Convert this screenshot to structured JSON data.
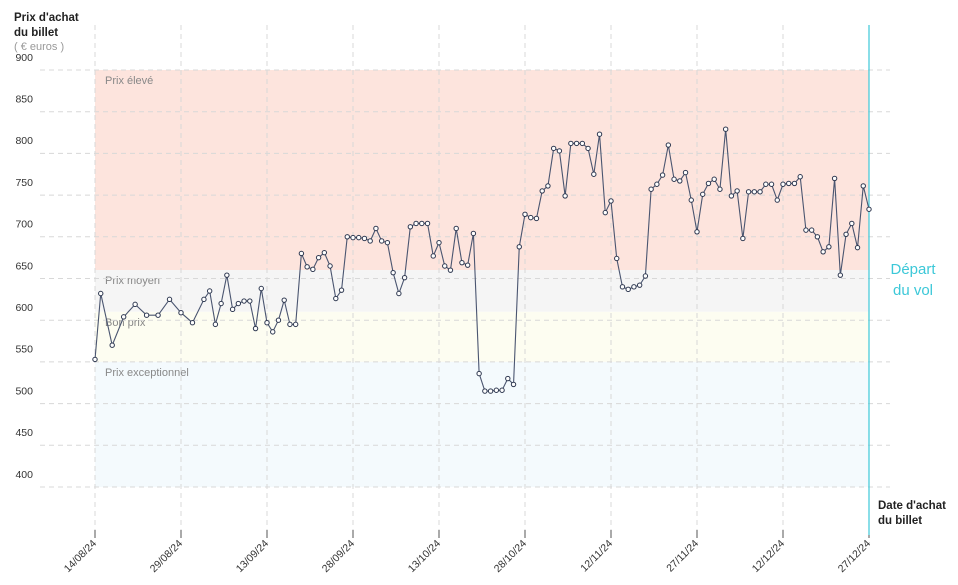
{
  "chart_data": {
    "type": "line",
    "y_label": [
      "Prix d'achat",
      "du billet"
    ],
    "y_unit": "( € euros )",
    "x_label": [
      "Date d'achat",
      "du billet"
    ],
    "departure": {
      "date": "2024-12-27",
      "label": [
        "Départ",
        "du vol"
      ],
      "color": "#3cc8d8"
    },
    "bands": [
      {
        "label": "Prix élevé",
        "from": 660,
        "to": 900,
        "color": "#fde4dd"
      },
      {
        "label": "Prix moyen",
        "from": 610,
        "to": 660,
        "color": "#f5f5f5"
      },
      {
        "label": "Bon prix",
        "from": 550,
        "to": 610,
        "color": "#fdfdf1"
      },
      {
        "label": "Prix exceptionnel",
        "from": 400,
        "to": 550,
        "color": "#f4fafd"
      }
    ],
    "xlim": [
      "2024-08-14",
      "2024-12-27"
    ],
    "xticks": [
      {
        "value": "2024-08-14",
        "label": "14/08/24"
      },
      {
        "value": "2024-08-29",
        "label": "29/08/24"
      },
      {
        "value": "2024-09-13",
        "label": "13/09/24"
      },
      {
        "value": "2024-09-28",
        "label": "28/09/24"
      },
      {
        "value": "2024-10-13",
        "label": "13/10/24"
      },
      {
        "value": "2024-10-28",
        "label": "28/10/24"
      },
      {
        "value": "2024-11-12",
        "label": "12/11/24"
      },
      {
        "value": "2024-11-27",
        "label": "27/11/24"
      },
      {
        "value": "2024-12-12",
        "label": "12/12/24"
      },
      {
        "value": "2024-12-27",
        "label": "27/12/24"
      }
    ],
    "ylim": [
      400,
      900
    ],
    "yticks": [
      400,
      450,
      500,
      550,
      600,
      650,
      700,
      750,
      800,
      850,
      900
    ],
    "grid": true,
    "series": [
      {
        "color": "#4a5570",
        "x": [
          "2024-08-14",
          "2024-08-15",
          "2024-08-17",
          "2024-08-19",
          "2024-08-21",
          "2024-08-23",
          "2024-08-25",
          "2024-08-27",
          "2024-08-29",
          "2024-08-31",
          "2024-09-02",
          "2024-09-03",
          "2024-09-04",
          "2024-09-05",
          "2024-09-06",
          "2024-09-07",
          "2024-09-08",
          "2024-09-09",
          "2024-09-10",
          "2024-09-11",
          "2024-09-12",
          "2024-09-13",
          "2024-09-14",
          "2024-09-15",
          "2024-09-16",
          "2024-09-17",
          "2024-09-18",
          "2024-09-19",
          "2024-09-20",
          "2024-09-21",
          "2024-09-22",
          "2024-09-23",
          "2024-09-24",
          "2024-09-25",
          "2024-09-26",
          "2024-09-27",
          "2024-09-28",
          "2024-09-29",
          "2024-09-30",
          "2024-10-01",
          "2024-10-02",
          "2024-10-03",
          "2024-10-04",
          "2024-10-05",
          "2024-10-06",
          "2024-10-07",
          "2024-10-08",
          "2024-10-09",
          "2024-10-10",
          "2024-10-11",
          "2024-10-12",
          "2024-10-13",
          "2024-10-14",
          "2024-10-15",
          "2024-10-16",
          "2024-10-17",
          "2024-10-18",
          "2024-10-19",
          "2024-10-20",
          "2024-10-21",
          "2024-10-22",
          "2024-10-23",
          "2024-10-24",
          "2024-10-25",
          "2024-10-26",
          "2024-10-27",
          "2024-10-28",
          "2024-10-29",
          "2024-10-30",
          "2024-10-31",
          "2024-11-01",
          "2024-11-02",
          "2024-11-03",
          "2024-11-04",
          "2024-11-05",
          "2024-11-06",
          "2024-11-07",
          "2024-11-08",
          "2024-11-09",
          "2024-11-10",
          "2024-11-11",
          "2024-11-12",
          "2024-11-13",
          "2024-11-14",
          "2024-11-15",
          "2024-11-16",
          "2024-11-17",
          "2024-11-18",
          "2024-11-19",
          "2024-11-20",
          "2024-11-21",
          "2024-11-22",
          "2024-11-23",
          "2024-11-24",
          "2024-11-25",
          "2024-11-26",
          "2024-11-27",
          "2024-11-28",
          "2024-11-29",
          "2024-11-30",
          "2024-12-01",
          "2024-12-02",
          "2024-12-03",
          "2024-12-04",
          "2024-12-05",
          "2024-12-06",
          "2024-12-07",
          "2024-12-08",
          "2024-12-09",
          "2024-12-10",
          "2024-12-11",
          "2024-12-12",
          "2024-12-13",
          "2024-12-14",
          "2024-12-15",
          "2024-12-16",
          "2024-12-17",
          "2024-12-18",
          "2024-12-19",
          "2024-12-20",
          "2024-12-21",
          "2024-12-22",
          "2024-12-23",
          "2024-12-24",
          "2024-12-25",
          "2024-12-26",
          "2024-12-27"
        ],
        "values": [
          553,
          632,
          570,
          604,
          619,
          606,
          606,
          625,
          609,
          597,
          625,
          635,
          595,
          620,
          654,
          613,
          620,
          623,
          623,
          590,
          638,
          597,
          586,
          600,
          624,
          595,
          595,
          680,
          664,
          661,
          675,
          681,
          665,
          626,
          636,
          700,
          699,
          699,
          698,
          695,
          710,
          695,
          693,
          657,
          632,
          651,
          712,
          716,
          716,
          716,
          677,
          693,
          665,
          660,
          710,
          669,
          666,
          704,
          536,
          515,
          515,
          516,
          516,
          530,
          523,
          688,
          727,
          723,
          722,
          755,
          761,
          806,
          803,
          749,
          812,
          812,
          812,
          806,
          775,
          823,
          729,
          743,
          674,
          640,
          637,
          640,
          642,
          653,
          757,
          763,
          774,
          810,
          769,
          767,
          777,
          744,
          706,
          751,
          764,
          769,
          757,
          829,
          749,
          755,
          698,
          754,
          754,
          754,
          763,
          763,
          744,
          763,
          764,
          764,
          772,
          708,
          708,
          700,
          682,
          688,
          770,
          654,
          703,
          716,
          687,
          761,
          733
        ]
      }
    ]
  }
}
